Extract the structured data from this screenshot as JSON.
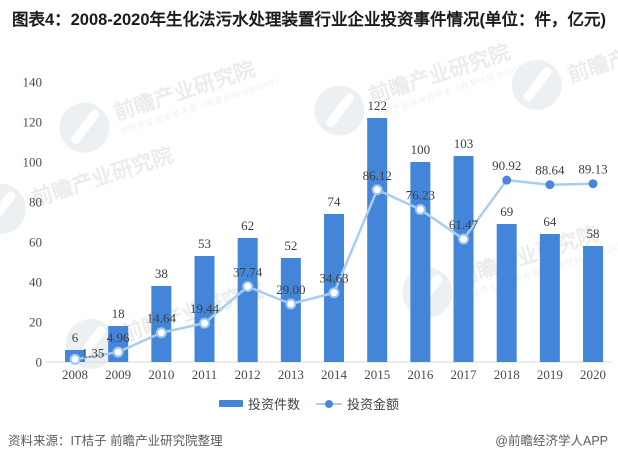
{
  "title": "图表4：2008-2020年生化法污水处理装置行业企业投资事件情况(单位：件，亿元)",
  "chart_data": {
    "type": "bar",
    "categories": [
      "2008",
      "2009",
      "2010",
      "2011",
      "2012",
      "2013",
      "2014",
      "2015",
      "2016",
      "2017",
      "2018",
      "2019",
      "2020"
    ],
    "series": [
      {
        "name": "投资件数",
        "type": "bar",
        "values": [
          6,
          18,
          38,
          53,
          62,
          52,
          74,
          122,
          100,
          103,
          69,
          64,
          58
        ],
        "labels": [
          "6",
          "18",
          "38",
          "53",
          "62",
          "52",
          "74",
          "122",
          "100",
          "103",
          "69",
          "64",
          "58"
        ],
        "color": "#4386d9"
      },
      {
        "name": "投资金额",
        "type": "line",
        "values": [
          1.35,
          4.96,
          14.64,
          19.44,
          37.74,
          29.0,
          34.63,
          86.12,
          76.23,
          61.47,
          90.92,
          88.64,
          89.13
        ],
        "labels": [
          "1.35",
          "4.96",
          "14.64",
          "19.44",
          "37.74",
          "29.00",
          "34.63",
          "86.12",
          "76.23",
          "61.47",
          "90.92",
          "88.64",
          "89.13"
        ],
        "color": "#a9cdf0",
        "marker_solid_color": "#4b87d8",
        "marker_open_stroke": "#9fc5ee",
        "solid_marker_from_index": 10
      }
    ],
    "ylim": [
      0,
      140
    ],
    "yticks": [
      0,
      20,
      40,
      60,
      80,
      100,
      120,
      140
    ],
    "grid": false,
    "legend_position": "bottom",
    "title": "图表4：2008-2020年生化法污水处理装置行业企业投资事件情况(单位：件，亿元)"
  },
  "colors": {
    "bar": "#4386d9",
    "line": "#a9cdf0",
    "marker_fill": "#4b87d8",
    "marker_stroke": "#9fc5ee",
    "axis_line": "#d9d9d9",
    "label_text": "#3f3f3f",
    "tick_text": "#4a4a4a",
    "title_text": "#1b1b1b",
    "footer_text": "#5c5c5c",
    "watermark": "#ececec"
  },
  "watermark": {
    "text": "前瞻产业研究院",
    "subtext": "中国产业咨询领导者（股票代码:839599）"
  },
  "legend": [
    {
      "label": "投资件数"
    },
    {
      "label": "投资金额"
    }
  ],
  "footer": {
    "source": "资料来源：IT桔子 前瞻产业研究院整理",
    "credit": "@前瞻经济学人APP"
  }
}
